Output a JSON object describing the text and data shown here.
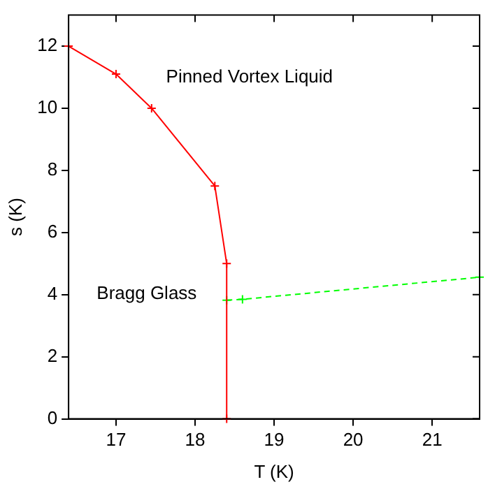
{
  "chart_data": {
    "type": "line",
    "xlabel": "T (K)",
    "ylabel": "s (K)",
    "xlim": [
      16.4,
      21.6
    ],
    "xticks": [
      17,
      18,
      19,
      20,
      21
    ],
    "ylim": [
      0,
      13
    ],
    "yticks": [
      0,
      2,
      4,
      6,
      8,
      10,
      12
    ],
    "grid": false,
    "legend": false,
    "series": [
      {
        "color": "#ff0000",
        "x": [
          16.4,
          17.0,
          17.45,
          18.25,
          18.4,
          18.4
        ],
        "values": [
          12,
          11.1,
          10.0,
          7.5,
          5.0,
          0
        ],
        "marker": "cross",
        "line_style": "solid"
      },
      {
        "color": "#00ff00",
        "x": [
          18.4,
          18.6,
          21.6
        ],
        "values": [
          3.82,
          3.85,
          4.56
        ],
        "marker": "cross",
        "line_style": "dashed"
      }
    ],
    "annotations": [
      "Pinned Vortex Liquid",
      "Bragg Glass"
    ]
  }
}
